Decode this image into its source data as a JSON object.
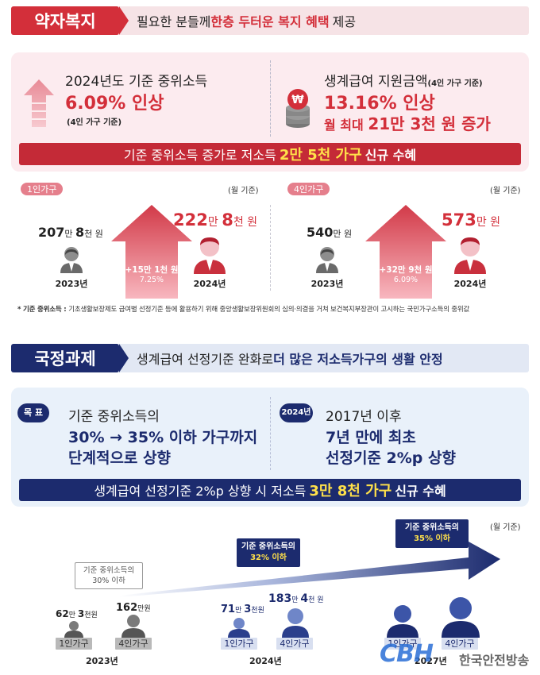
{
  "section1": {
    "badge": "약자복지",
    "headline_pre": "필요한 분들께 ",
    "headline_em": "한층 두터운 복지 혜택",
    "headline_post": " 제공",
    "left": {
      "title": "2024년도 기준 중위소득",
      "value": "6.09% 인상",
      "note": "(4인 가구 기준)"
    },
    "right": {
      "title": "생계급여 지원금액",
      "title_note": "(4인 가구 기준)",
      "value": "13.16% 인상",
      "value2_pre": "월 최대 ",
      "value2_em": "21만 3천 원 증가",
      "coin_symbol": "₩"
    },
    "banner_pre": "기준 중위소득 증가로 저소득 ",
    "banner_em": "2만 5천 가구",
    "banner_post": " 신규 수혜",
    "basis": "(월 기준)",
    "single": {
      "pill": "1인가구",
      "before_num": "207",
      "before_u1": "만 ",
      "before_num2": "8",
      "before_u2": "천 원",
      "after_num": "222",
      "after_u1": "만 ",
      "after_num2": "8",
      "after_u2": "천 원",
      "increase": "+15만 1천 원",
      "rate": "7.25%",
      "year_before": "2023년",
      "year_after": "2024년"
    },
    "family": {
      "pill": "4인가구",
      "before_num": "540",
      "before_u1": "만 원",
      "after_num": "573",
      "after_u1": "만 원",
      "increase": "+32만 9천 원",
      "rate": "6.09%",
      "year_before": "2023년",
      "year_after": "2024년"
    },
    "footnote_label": "* 기준 중위소득 : ",
    "footnote_text": "기초생활보장제도 급여별 선정기준 등에 활용하기 위해 중앙생활보장위원회의 심의·의결을 거쳐 보건복지부장관이 고시하는 국민가구소득의 중위값"
  },
  "section2": {
    "badge": "국정과제",
    "headline_pre": "생계급여 선정기준 완화로 ",
    "headline_em": "더 많은 저소득가구의 생활 안정",
    "goal_tag": "목 표",
    "goal_line1": "기준 중위소득의",
    "goal_line2": "30% → 35% 이하 가구까지",
    "goal_line3": "단계적으로 상향",
    "year_tag": "2024년",
    "year_line1": "2017년 이후",
    "year_line2": "7년 만에 최초",
    "year_line3": "선정기준 2%p 상향",
    "banner_pre": "생계급여 선정기준 2%p 상향 시 저소득 ",
    "banner_em": "3만 8천 가구",
    "banner_post": " 신규 수혜",
    "basis": "(월 기준)",
    "stages": [
      {
        "tag1": "기준 중위소득의",
        "tag2": "30% 이하",
        "single_num": "62",
        "single_u1": "만 ",
        "single_num2": "3",
        "single_u2": "천원",
        "family_num": "162",
        "family_u1": "만원",
        "year": "2023년"
      },
      {
        "tag1": "기준 중위소득의",
        "tag2": "32% 이하",
        "single_num": "71",
        "single_u1": "만 ",
        "single_num2": "3",
        "single_u2": "천원",
        "family_num": "183",
        "family_u1": "만 ",
        "family_num2": "4",
        "family_u2": "천 원",
        "year": "2024년"
      },
      {
        "tag1": "기준 중위소득의",
        "tag2": "35% 이하",
        "year": "2027년"
      }
    ],
    "plate_single": "1인가구",
    "plate_family": "4인가구"
  },
  "watermark": {
    "logo": "CBH",
    "name": "한국안전방송"
  },
  "colors": {
    "red": "#d32f3a",
    "navy": "#1c2b6e",
    "pink_panel": "#fcebef",
    "blue_panel": "#e9f1fa"
  }
}
